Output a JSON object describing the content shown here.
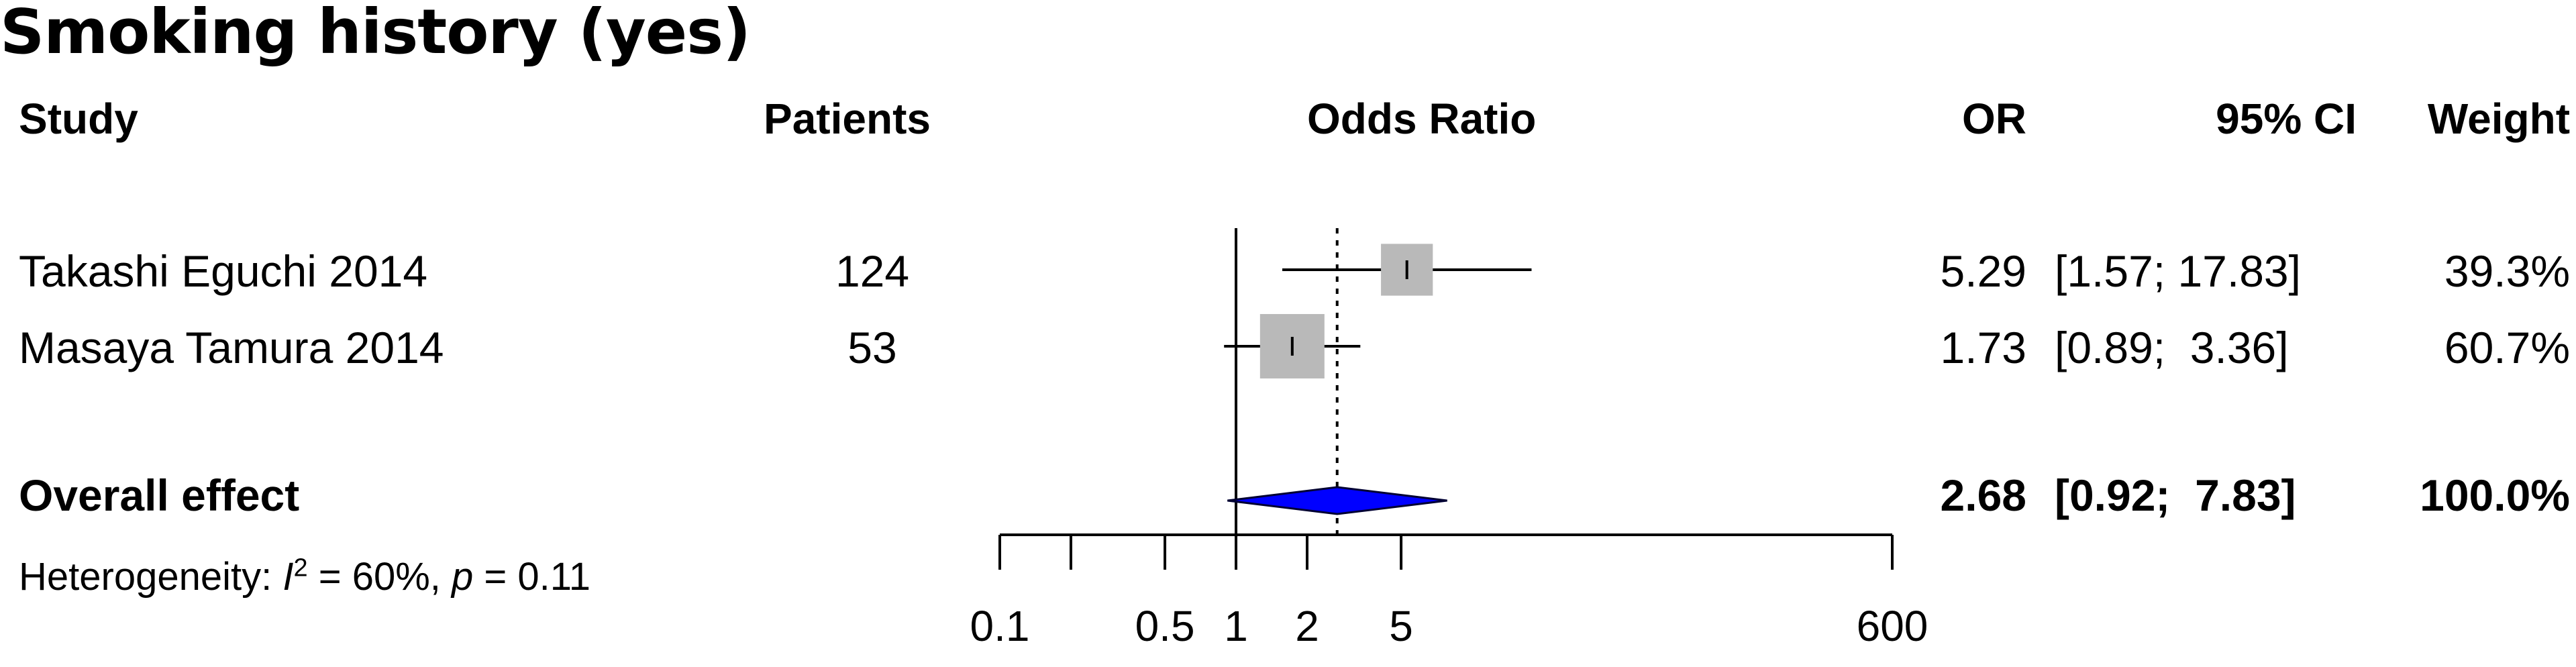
{
  "title": "Smoking history (yes)",
  "headers": {
    "study": "Study",
    "patients": "Patients",
    "effect": "Odds Ratio",
    "or": "OR",
    "ci": "95% CI",
    "weight": "Weight"
  },
  "studies": [
    {
      "name": "Takashi Eguchi 2014",
      "patients": "124",
      "or": "5.29",
      "ci": "[1.57; 17.83]",
      "weight": "39.3%"
    },
    {
      "name": "Masaya Tamura 2014",
      "patients": "53",
      "or": "1.73",
      "ci": "[0.89;  3.36]",
      "weight": "60.7%"
    }
  ],
  "overall": {
    "label": "Overall effect",
    "or": "2.68",
    "ci": "[0.92;  7.83]",
    "weight": "100.0%"
  },
  "heterogeneity": {
    "prefix": "Heterogeneity: ",
    "i": "I",
    "sup": "2",
    "mid": " = 60%, ",
    "p": "p",
    "suffix": " = 0.11"
  },
  "colors": {
    "box": "#b9b9b9",
    "diamond": "#0000ff",
    "line": "#000000"
  },
  "chart_data": {
    "type": "forest",
    "scale": "log",
    "xlim": [
      0.1,
      600
    ],
    "ticks": [
      0.1,
      0.2,
      0.5,
      1,
      2,
      5,
      600
    ],
    "tick_labels": [
      "0.1",
      "",
      "0.5",
      "1",
      "2",
      "5",
      "600"
    ],
    "null_value": 1,
    "studies": [
      {
        "name": "Takashi Eguchi 2014",
        "or": 5.29,
        "lower": 1.57,
        "upper": 17.83,
        "weight": 39.3
      },
      {
        "name": "Masaya Tamura 2014",
        "or": 1.73,
        "lower": 0.89,
        "upper": 3.36,
        "weight": 60.7
      }
    ],
    "overall": {
      "or": 2.68,
      "lower": 0.92,
      "upper": 7.83,
      "weight": 100.0
    }
  }
}
